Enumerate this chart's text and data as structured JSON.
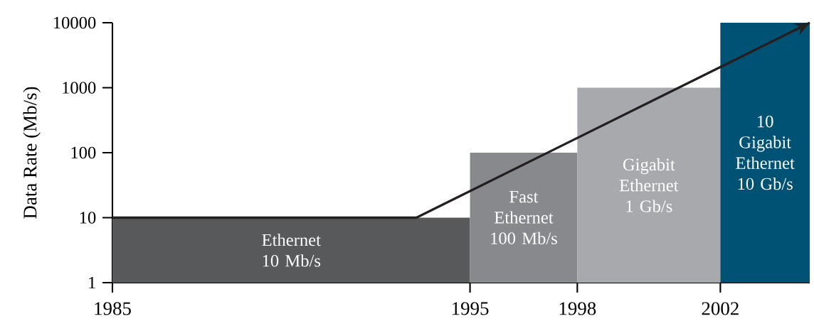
{
  "chart_data": {
    "type": "histogram",
    "ylabel": "Data Rate (Mb/s)",
    "log": true,
    "bins": [
      1985,
      1995,
      1998,
      2002,
      2004.5
    ],
    "xlim": [
      1985,
      2004.5
    ],
    "xticks": [
      1985,
      1995,
      1998,
      2002
    ],
    "ylim": [
      1,
      10000
    ],
    "yticks": [
      1,
      10,
      100,
      1000,
      10000
    ],
    "series": [
      {
        "values": [
          10,
          100,
          1000,
          10000
        ],
        "colors": [
          "#58595b",
          "#88898c",
          "#a7a9ac",
          "#005275"
        ]
      },
      {
        "type": "line",
        "x": [
          1985,
          1993.5,
          2004.5
        ],
        "values": [
          10,
          10,
          10000
        ],
        "color": "#231f20"
      }
    ],
    "annotations": [
      "Ethernet 10 Mb/s",
      "Fast Ethernet 100 Mb/s",
      "Gigabit Ethernet 1 Gb/s",
      "10 Gigabit Ethernet 10 Gb/s"
    ]
  }
}
